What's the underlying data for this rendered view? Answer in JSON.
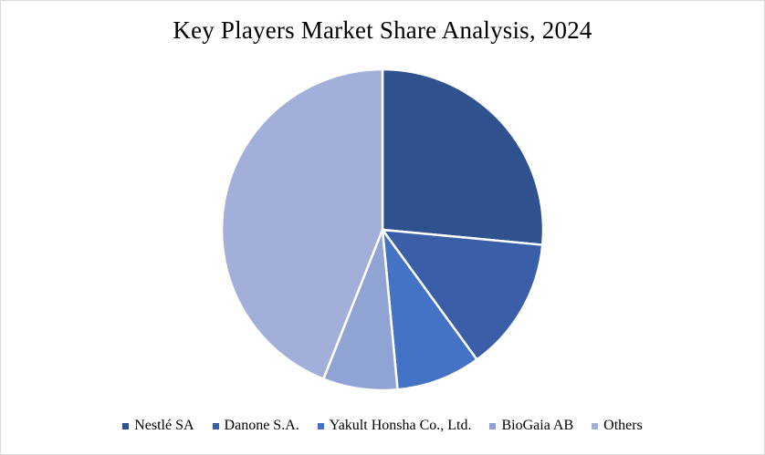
{
  "chart_data": {
    "type": "pie",
    "title": "Key Players Market Share Analysis, 2024",
    "categories": [
      "Nestlé SA",
      "Danone S.A.",
      "Yakult Honsha Co., Ltd.",
      "BioGaia AB",
      "Others"
    ],
    "values": [
      26.5,
      13.5,
      8.5,
      7.5,
      44.0
    ],
    "colors": [
      "#2f528f",
      "#3a5fa8",
      "#4472c4",
      "#8fa3d4",
      "#a2afd9"
    ],
    "legend_position": "bottom",
    "start_angle": "12 o'clock",
    "direction": "clockwise",
    "slice_border_color": "#ffffff"
  }
}
